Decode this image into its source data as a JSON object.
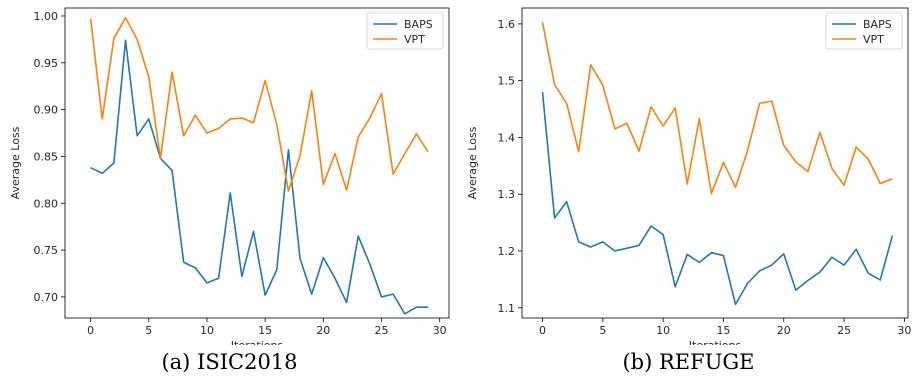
{
  "colors": {
    "baps": "#1f77b4",
    "vpt": "#ff7f0e"
  },
  "chart_data": [
    {
      "type": "line",
      "xlabel": "Iterations",
      "ylabel": "Average Loss",
      "xlim": [
        -2.2,
        30.8
      ],
      "ylim": [
        0.6775,
        1.0085
      ],
      "xticks": [
        0,
        5,
        10,
        15,
        20,
        25,
        30
      ],
      "yticks": [
        "0.70",
        "0.75",
        "0.80",
        "0.85",
        "0.90",
        "0.95",
        "1.00"
      ],
      "grid": false,
      "legend": "top-right",
      "x": [
        0,
        1,
        2,
        3,
        4,
        5,
        6,
        7,
        8,
        9,
        10,
        11,
        12,
        13,
        14,
        15,
        16,
        17,
        18,
        19,
        20,
        21,
        22,
        23,
        24,
        25,
        26,
        27,
        28,
        29
      ],
      "series": [
        {
          "name": "BAPS",
          "values": [
            0.838,
            0.832,
            0.843,
            0.974,
            0.872,
            0.89,
            0.848,
            0.835,
            0.737,
            0.731,
            0.715,
            0.72,
            0.811,
            0.722,
            0.77,
            0.702,
            0.729,
            0.857,
            0.741,
            0.703,
            0.742,
            0.72,
            0.694,
            0.765,
            0.735,
            0.7,
            0.703,
            0.682,
            0.689,
            0.689
          ]
        },
        {
          "name": "VPT",
          "values": [
            0.997,
            0.89,
            0.976,
            0.998,
            0.975,
            0.935,
            0.848,
            0.94,
            0.872,
            0.894,
            0.875,
            0.88,
            0.89,
            0.891,
            0.886,
            0.931,
            0.884,
            0.813,
            0.851,
            0.92,
            0.82,
            0.853,
            0.814,
            0.871,
            0.891,
            0.917,
            0.831,
            0.853,
            0.874,
            0.855
          ]
        }
      ]
    },
    {
      "type": "line",
      "xlabel": "Iterations",
      "ylabel": "Average Loss",
      "xlim": [
        -1.7,
        30.3
      ],
      "ylim": [
        1.082,
        1.628
      ],
      "xticks": [
        0,
        5,
        10,
        15,
        20,
        25,
        30
      ],
      "yticks": [
        "1.1",
        "1.2",
        "1.3",
        "1.4",
        "1.5",
        "1.6"
      ],
      "grid": false,
      "legend": "top-right",
      "x": [
        0,
        1,
        2,
        3,
        4,
        5,
        6,
        7,
        8,
        9,
        10,
        11,
        12,
        13,
        14,
        15,
        16,
        17,
        18,
        19,
        20,
        21,
        22,
        23,
        24,
        25,
        26,
        27,
        28,
        29
      ],
      "series": [
        {
          "name": "BAPS",
          "values": [
            1.48,
            1.258,
            1.287,
            1.216,
            1.207,
            1.216,
            1.2,
            1.205,
            1.21,
            1.244,
            1.229,
            1.137,
            1.194,
            1.18,
            1.197,
            1.192,
            1.106,
            1.143,
            1.165,
            1.175,
            1.195,
            1.131,
            1.148,
            1.163,
            1.189,
            1.175,
            1.203,
            1.161,
            1.149,
            1.227
          ]
        },
        {
          "name": "VPT",
          "values": [
            1.603,
            1.493,
            1.46,
            1.375,
            1.528,
            1.492,
            1.415,
            1.425,
            1.376,
            1.454,
            1.42,
            1.452,
            1.318,
            1.433,
            1.301,
            1.356,
            1.312,
            1.377,
            1.46,
            1.464,
            1.386,
            1.357,
            1.34,
            1.409,
            1.345,
            1.316,
            1.383,
            1.362,
            1.319,
            1.327
          ]
        }
      ]
    }
  ],
  "captions": [
    "(a) ISIC2018",
    "(b) REFUGE"
  ]
}
